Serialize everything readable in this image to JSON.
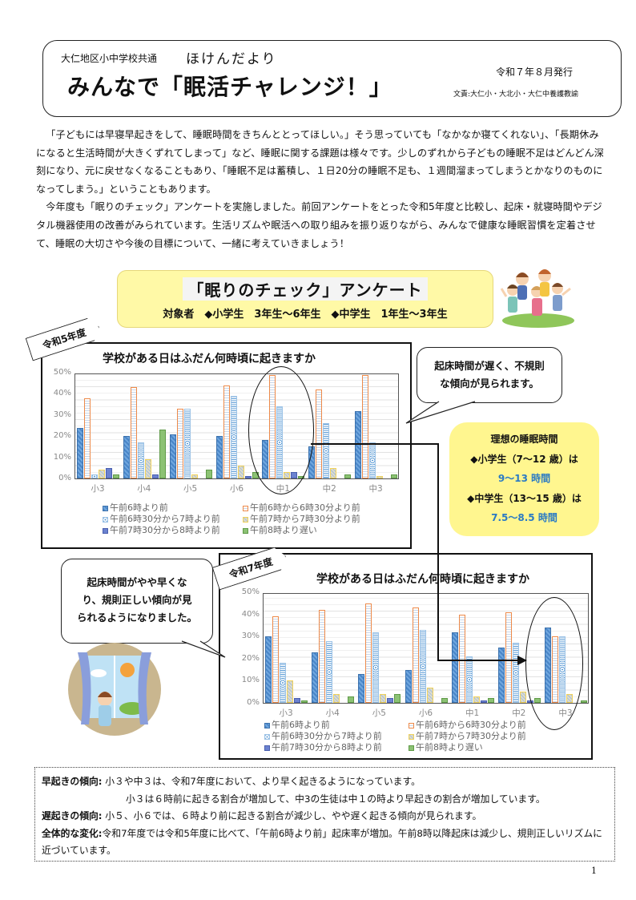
{
  "header": {
    "org": "大仁地区小中学校共通",
    "newsletter_name": "ほけんだより",
    "title": "みんなで「眠活チャレンジ！」",
    "issue_date": "令和７年８月発行",
    "author": "文責:大仁小・大北小・大仁中養護教諭"
  },
  "intro": {
    "paragraph1": "「子どもには早寝早起きをして、睡眠時間をきちんととってほしい。」そう思っていても「なかなか寝てくれない」、「長期休みになると生活時間が大きくずれてしまって」など、睡眠に関する課題は様々です。少しのずれから子どもの睡眠不足はどんどん深刻になり、元に戻せなくなることもあり、「睡眠不足は蓄積し、１日20分の睡眠不足も、１週間溜まってしまうとかなりのものになってしまう。」ということもあります。",
    "paragraph2": "今年度も「眠りのチェック」アンケートを実施しました。前回アンケートをとった令和5年度と比較し、起床・就寝時間やデジタル機器使用の改善がみられています。生活リズムや眠活への取り組みを振り返りながら、みんなで健康な睡眠習慣を定着させて、睡眠の大切さや今後の目標について、一緒に考えていきましょう！"
  },
  "survey": {
    "title": "「眠りのチェック」アンケート",
    "target": "対象者　◆小学生　3年生～6年生　◆中学生　1年生～3年生"
  },
  "tags": {
    "r5": "令和5年度",
    "r7": "令和7年度"
  },
  "bubbles": {
    "r5_comment": [
      "起床時間が遅く、不規則",
      "な傾向が見られます。"
    ],
    "r7_comment": [
      "起床時間がやや早くな",
      "り、規則正しい傾向が見",
      "られるようになりました。"
    ]
  },
  "ideal_sleep": {
    "title": "理想の睡眠時間",
    "elementary_label": "◆小学生（7～12 歳）は",
    "elementary_value": "9～13 時間",
    "junior_label": "◆中学生（13～15 歳）は",
    "junior_value": "7.5～8.5 時間",
    "value_color": "#2a7ac4"
  },
  "summary": {
    "early_label": "早起きの傾向:",
    "early_text1": "小３や中３は、令和7年度において、より早く起きるようになっています。",
    "early_text2": "小３は６時前に起きる割合が増加して、中3の生徒は中１の時より早起きの割合が増加しています。",
    "late_label": "遅起きの傾向:",
    "late_text": "小５、小６では、６時より前に起きる割合が減少し、やや遅く起きる傾向が見られます。",
    "overall_label": "全体的な変化:",
    "overall_text": "令和7年度では令和5年度に比べて、「午前6時より前」起床率が増加。午前8時以降起床は減少し、規則正しいリズムに近づいています。"
  },
  "page_number": "1",
  "chart_data": [
    {
      "type": "bar",
      "title": "学校がある日はふだん何時頃に起きますか",
      "subtitle": "令和5年度",
      "categories": [
        "小3",
        "小4",
        "小5",
        "小6",
        "中1",
        "中2",
        "中3"
      ],
      "yticks": [
        "50%",
        "40%",
        "30%",
        "20%",
        "10%",
        "0%"
      ],
      "ylim": [
        0,
        50
      ],
      "ylabel": "",
      "xlabel": "",
      "grid": true,
      "legend_position": "bottom",
      "series": [
        {
          "name": "午前6時より前",
          "color": "#4a86c8",
          "values": [
            24,
            20,
            21,
            20,
            18,
            15,
            32
          ]
        },
        {
          "name": "午前6時から6時30分より前",
          "color": "#ed8a4a",
          "values": [
            38,
            43,
            33,
            44,
            49,
            42,
            49
          ]
        },
        {
          "name": "午前6時30分から7時より前",
          "color": "#5b9bd5",
          "values": [
            2,
            17,
            33,
            39,
            34,
            26,
            17
          ]
        },
        {
          "name": "午前7時から7時30分より前",
          "color": "#f1d25a",
          "values": [
            4,
            9,
            2,
            6,
            3,
            5,
            1
          ]
        },
        {
          "name": "午前7時30分から8時より前",
          "color": "#6b82d0",
          "values": [
            5,
            2,
            0,
            1,
            3,
            0,
            0
          ]
        },
        {
          "name": "午前8時より遅い",
          "color": "#8cc274",
          "values": [
            2,
            23,
            4,
            3,
            1,
            2,
            2
          ]
        }
      ]
    },
    {
      "type": "bar",
      "title": "学校がある日はふだん何時頃に起きますか",
      "subtitle": "令和7年度",
      "categories": [
        "小3",
        "小4",
        "小5",
        "小6",
        "中1",
        "中2",
        "中3"
      ],
      "yticks": [
        "50%",
        "40%",
        "30%",
        "20%",
        "10%",
        "0%"
      ],
      "ylim": [
        0,
        50
      ],
      "ylabel": "",
      "xlabel": "",
      "grid": true,
      "legend_position": "bottom",
      "series": [
        {
          "name": "午前6時より前",
          "color": "#4a86c8",
          "values": [
            30,
            23,
            13,
            15,
            32,
            25,
            34
          ]
        },
        {
          "name": "午前6時から6時30分より前",
          "color": "#ed8a4a",
          "values": [
            39,
            42,
            45,
            43,
            40,
            41,
            30
          ]
        },
        {
          "name": "午前6時30分から7時より前",
          "color": "#5b9bd5",
          "values": [
            18,
            28,
            32,
            33,
            21,
            27,
            30
          ]
        },
        {
          "name": "午前7時から7時30分より前",
          "color": "#f1d25a",
          "values": [
            10,
            4,
            4,
            7,
            3,
            5,
            4
          ]
        },
        {
          "name": "午前7時30分から8時より前",
          "color": "#6b82d0",
          "values": [
            2,
            0,
            2,
            0,
            1,
            1,
            0
          ]
        },
        {
          "name": "午前8時より遅い",
          "color": "#8cc274",
          "values": [
            1,
            3,
            4,
            2,
            2,
            2,
            1
          ]
        }
      ]
    }
  ]
}
